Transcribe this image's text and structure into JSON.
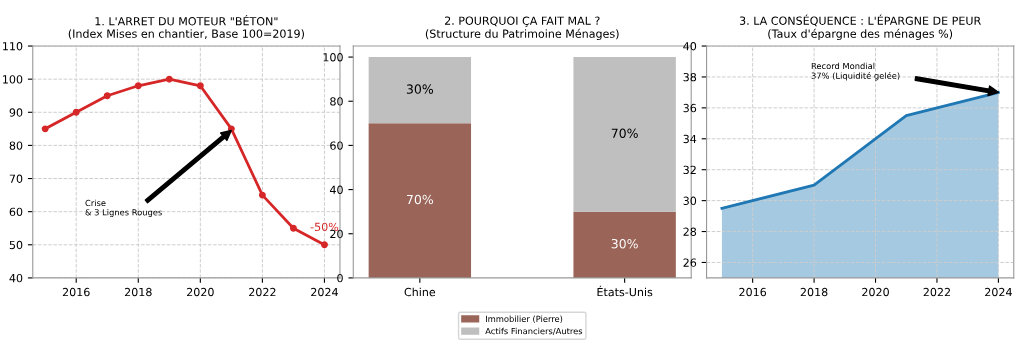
{
  "chart_data": [
    {
      "type": "line",
      "title": "1. L'ARRET DU MOTEUR \"BÉTON\"",
      "subtitle": "(Index Mises en chantier, Base 100=2019)",
      "x": [
        2015,
        2016,
        2017,
        2018,
        2019,
        2020,
        2021,
        2022,
        2023,
        2024
      ],
      "series": [
        {
          "color": "#d62728",
          "values": [
            85,
            90,
            95,
            98,
            100,
            98,
            85,
            65,
            55,
            50
          ]
        }
      ],
      "xlim": [
        2014.6,
        2024.5
      ],
      "xticks": [
        2016,
        2018,
        2020,
        2022,
        2024
      ],
      "ylim": [
        40,
        110
      ],
      "yticks": [
        40,
        50,
        60,
        70,
        80,
        90,
        100,
        110
      ],
      "grid": true,
      "marker": "circle",
      "line_style": "solid",
      "annotations": [
        "Crise\n& 3 Lignes Rouges",
        {
          "text": "-50%",
          "x": 2024,
          "y": 50
        }
      ]
    },
    {
      "type": "bar",
      "stacked": true,
      "title": "2. POURQUOI ÇA FAIT MAL ?",
      "subtitle": "(Structure du Patrimoine Ménages)",
      "categories": [
        "Chine",
        "États-Unis"
      ],
      "series": [
        {
          "name": "Immobilier (Pierre)",
          "color": "#9a6458",
          "values": [
            70,
            30
          ],
          "value_labels": [
            "70%",
            "30%"
          ]
        },
        {
          "name": "Actifs Financiers/Autres",
          "color": "#bfbfbf",
          "values": [
            30,
            70
          ],
          "value_labels": [
            "30%",
            "70%"
          ]
        }
      ],
      "ylim": [
        0,
        105
      ],
      "yticks": [
        0,
        20,
        40,
        60,
        80,
        100
      ],
      "legend": "bottom"
    },
    {
      "type": "area",
      "title": "3. LA CONSÉQUENCE : L'ÉPARGNE DE PEUR",
      "subtitle": "(Taux d'épargne des ménages %)",
      "x": [
        2015,
        2018,
        2021,
        2024
      ],
      "series": [
        {
          "color": "#1f77b4",
          "values": [
            29.5,
            31,
            35.5,
            37
          ]
        }
      ],
      "xlim": [
        2014.5,
        2024.5
      ],
      "xticks": [
        2016,
        2018,
        2020,
        2022,
        2024
      ],
      "ylim": [
        25,
        40
      ],
      "yticks": [
        26,
        28,
        30,
        32,
        34,
        36,
        38,
        40
      ],
      "grid": true,
      "annotations": [
        "Record Mondial\n37% (Liquidité gelée)"
      ]
    }
  ]
}
